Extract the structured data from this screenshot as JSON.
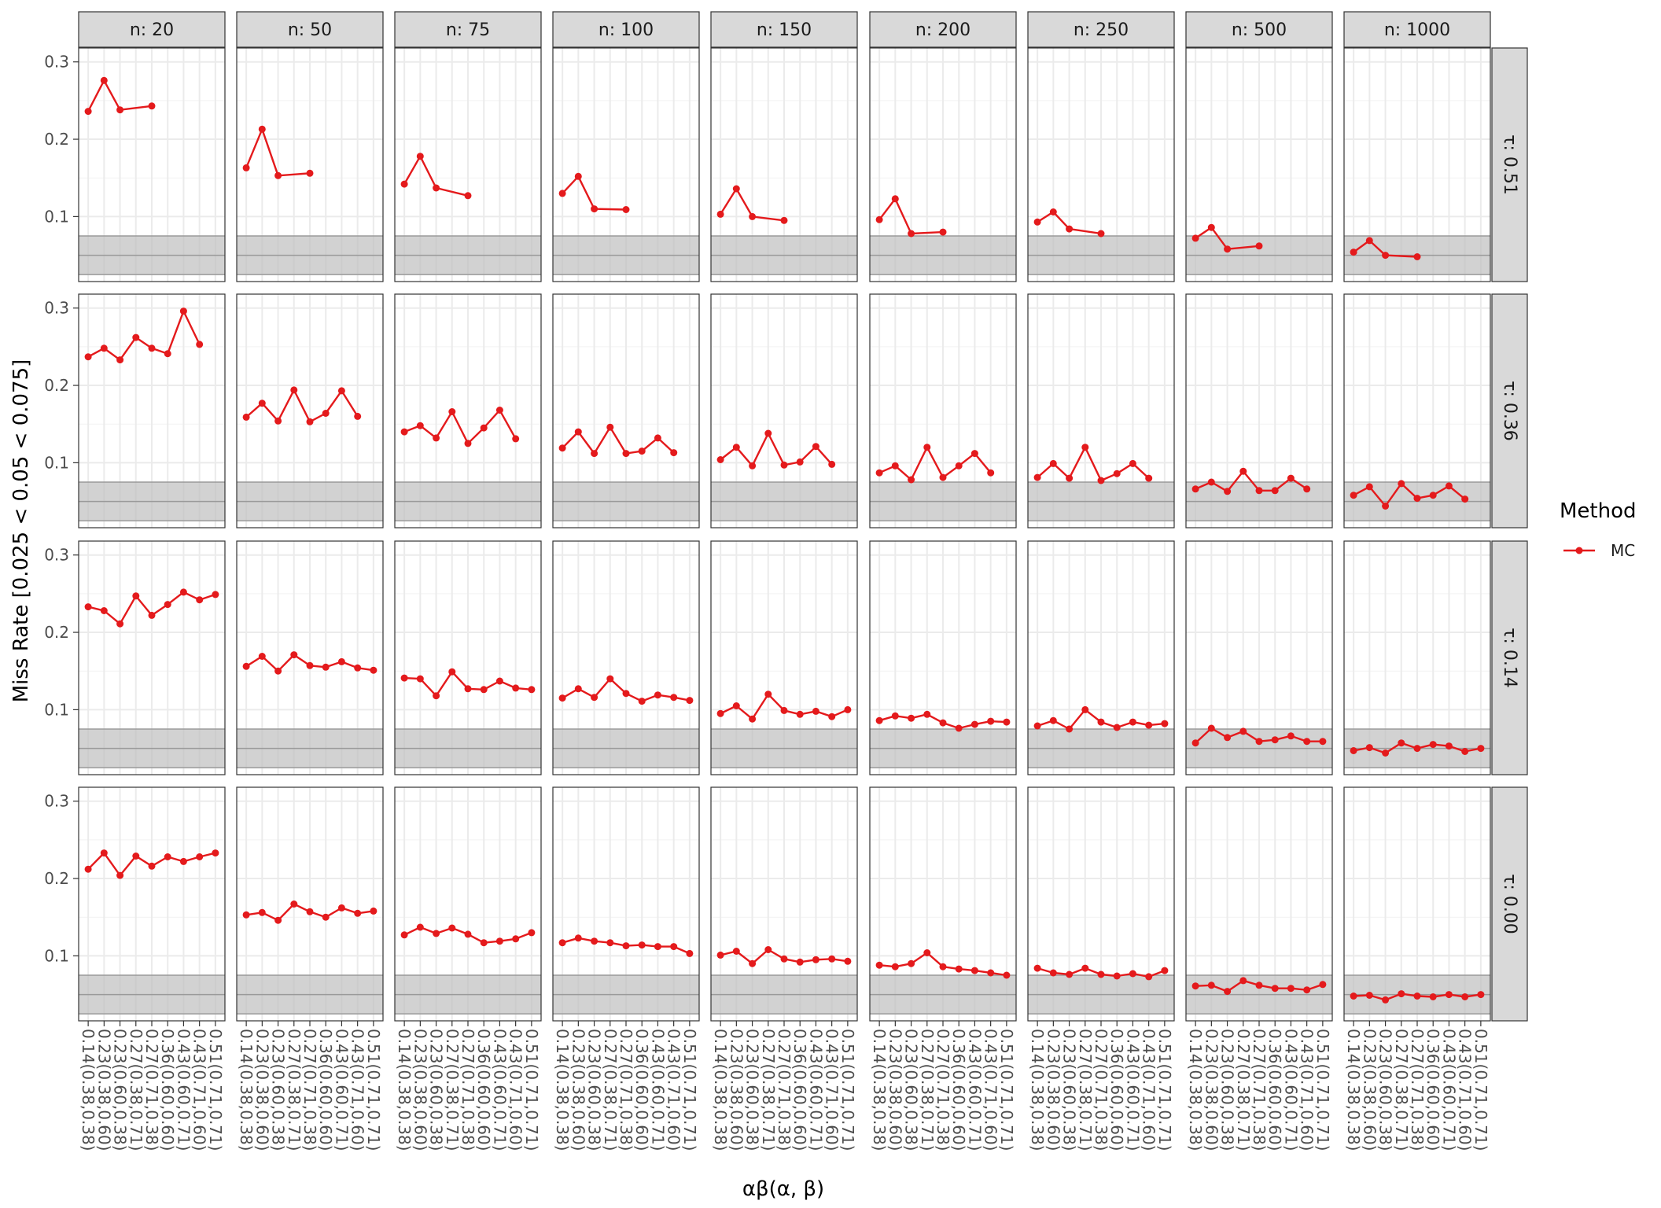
{
  "chart_data": {
    "type": "line",
    "xlabel": "αβ(α, β)",
    "ylabel": "Miss Rate [0.025 < 0.05 < 0.075]",
    "ylim": [
      0.016,
      0.318
    ],
    "y_ticks": [
      0.1,
      0.2,
      0.3
    ],
    "y_tick_labels": [
      "0.1",
      "0.2",
      "0.3"
    ],
    "grid": true,
    "reference_band": {
      "low": 0.025,
      "mid": 0.05,
      "high": 0.075
    },
    "categories": [
      "0.14(0.38,0.38)",
      "0.23(0.38,0.60)",
      "0.23(0.60,0.38)",
      "0.27(0.38,0.71)",
      "0.27(0.71,0.38)",
      "0.36(0.60,0.60)",
      "0.43(0.60,0.71)",
      "0.43(0.71,0.60)",
      "0.51(0.71,0.71)"
    ],
    "columns": [
      "n: 20",
      "n: 50",
      "n: 75",
      "n: 100",
      "n: 150",
      "n: 200",
      "n: 250",
      "n: 500",
      "n: 1000"
    ],
    "rows": [
      "τ: 0.51",
      "τ: 0.36",
      "τ: 0.14",
      "τ: 0.00"
    ],
    "legend": {
      "title": "Method",
      "position": "right",
      "entries": [
        {
          "label": "MC",
          "color": "#e41a1c"
        }
      ]
    },
    "series_color": "#e41a1c",
    "panels": [
      [
        [
          0.236,
          0.276,
          0.238,
          null,
          0.243,
          null,
          null,
          null,
          null
        ],
        [
          0.163,
          0.213,
          0.153,
          null,
          0.156,
          null,
          null,
          null,
          null
        ],
        [
          0.142,
          0.178,
          0.137,
          null,
          0.127,
          null,
          null,
          null,
          null
        ],
        [
          0.13,
          0.152,
          0.11,
          null,
          0.109,
          null,
          null,
          null,
          null
        ],
        [
          0.103,
          0.136,
          0.1,
          null,
          0.095,
          null,
          null,
          null,
          null
        ],
        [
          0.096,
          0.123,
          0.078,
          null,
          0.08,
          null,
          null,
          null,
          null
        ],
        [
          0.093,
          0.106,
          0.084,
          null,
          0.078,
          null,
          null,
          null,
          null
        ],
        [
          0.072,
          0.086,
          0.058,
          null,
          0.062,
          null,
          null,
          null,
          null
        ],
        [
          0.054,
          0.069,
          0.05,
          null,
          0.048,
          null,
          null,
          null,
          null
        ]
      ],
      [
        [
          0.237,
          0.248,
          0.233,
          0.262,
          0.248,
          0.241,
          0.296,
          0.253,
          null
        ],
        [
          0.159,
          0.177,
          0.154,
          0.194,
          0.153,
          0.164,
          0.193,
          0.16,
          null
        ],
        [
          0.14,
          0.148,
          0.132,
          0.166,
          0.125,
          0.145,
          0.168,
          0.131,
          null
        ],
        [
          0.119,
          0.14,
          0.112,
          0.146,
          0.112,
          0.115,
          0.132,
          0.113,
          null
        ],
        [
          0.104,
          0.12,
          0.096,
          0.138,
          0.097,
          0.101,
          0.121,
          0.098,
          null
        ],
        [
          0.087,
          0.096,
          0.078,
          0.12,
          0.081,
          0.096,
          0.112,
          0.087,
          null
        ],
        [
          0.081,
          0.099,
          0.08,
          0.12,
          0.077,
          0.086,
          0.099,
          0.08,
          null
        ],
        [
          0.066,
          0.075,
          0.063,
          0.089,
          0.064,
          0.064,
          0.08,
          0.066,
          null
        ],
        [
          0.058,
          0.069,
          0.044,
          0.073,
          0.054,
          0.058,
          0.07,
          0.053,
          null
        ]
      ],
      [
        [
          0.233,
          0.228,
          0.211,
          0.247,
          0.222,
          0.236,
          0.252,
          0.242,
          0.249
        ],
        [
          0.156,
          0.169,
          0.15,
          0.171,
          0.157,
          0.155,
          0.162,
          0.154,
          0.151
        ],
        [
          0.141,
          0.14,
          0.118,
          0.149,
          0.127,
          0.126,
          0.137,
          0.128,
          0.126
        ],
        [
          0.115,
          0.127,
          0.116,
          0.14,
          0.121,
          0.111,
          0.119,
          0.116,
          0.112
        ],
        [
          0.095,
          0.105,
          0.088,
          0.12,
          0.099,
          0.094,
          0.098,
          0.091,
          0.1
        ],
        [
          0.086,
          0.092,
          0.089,
          0.094,
          0.083,
          0.076,
          0.081,
          0.085,
          0.084
        ],
        [
          0.079,
          0.086,
          0.075,
          0.1,
          0.084,
          0.077,
          0.084,
          0.08,
          0.082
        ],
        [
          0.057,
          0.076,
          0.064,
          0.072,
          0.059,
          0.061,
          0.066,
          0.059,
          0.059
        ],
        [
          0.047,
          0.051,
          0.044,
          0.057,
          0.05,
          0.055,
          0.053,
          0.046,
          0.05
        ]
      ],
      [
        [
          0.212,
          0.233,
          0.204,
          0.229,
          0.216,
          0.228,
          0.222,
          0.228,
          0.233
        ],
        [
          0.153,
          0.156,
          0.146,
          0.167,
          0.157,
          0.15,
          0.162,
          0.155,
          0.158
        ],
        [
          0.127,
          0.137,
          0.129,
          0.136,
          0.128,
          0.117,
          0.119,
          0.122,
          0.13
        ],
        [
          0.117,
          0.123,
          0.119,
          0.117,
          0.113,
          0.114,
          0.112,
          0.112,
          0.103
        ],
        [
          0.101,
          0.106,
          0.09,
          0.108,
          0.096,
          0.092,
          0.095,
          0.096,
          0.093
        ],
        [
          0.088,
          0.086,
          0.09,
          0.104,
          0.086,
          0.083,
          0.081,
          0.078,
          0.075
        ],
        [
          0.084,
          0.078,
          0.076,
          0.084,
          0.076,
          0.074,
          0.077,
          0.073,
          0.081
        ],
        [
          0.061,
          0.062,
          0.054,
          0.068,
          0.062,
          0.058,
          0.058,
          0.056,
          0.063
        ],
        [
          0.048,
          0.049,
          0.043,
          0.051,
          0.048,
          0.047,
          0.05,
          0.047,
          0.05
        ]
      ]
    ]
  }
}
